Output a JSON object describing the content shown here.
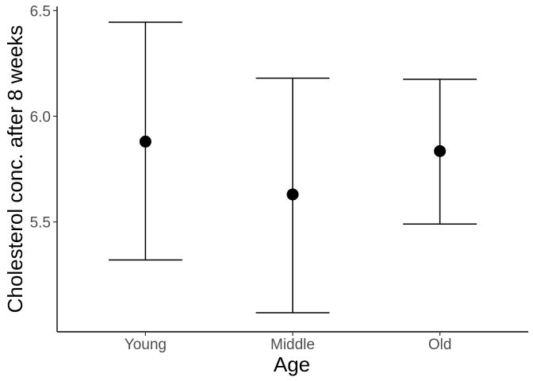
{
  "chart_data": {
    "type": "scatter",
    "title": "",
    "xlabel": "Age",
    "ylabel": "Cholesterol conc. after 8 weeks",
    "categories": [
      "Young",
      "Middle",
      "Old"
    ],
    "series": [
      {
        "values": [
          5.88,
          5.63,
          5.835
        ],
        "lower": [
          5.32,
          5.07,
          5.49
        ],
        "upper": [
          6.445,
          6.18,
          6.175
        ]
      }
    ],
    "y_ticks": [
      5.5,
      6.0,
      6.5
    ],
    "y_tick_labels": [
      "5.5",
      "6.0",
      "6.5"
    ],
    "ylim": [
      4.98,
      6.52
    ],
    "grid": false,
    "legend": "none",
    "colors": {
      "marker": "#000000",
      "axis": "#000000",
      "tick_text": "#4d4d4d"
    }
  }
}
